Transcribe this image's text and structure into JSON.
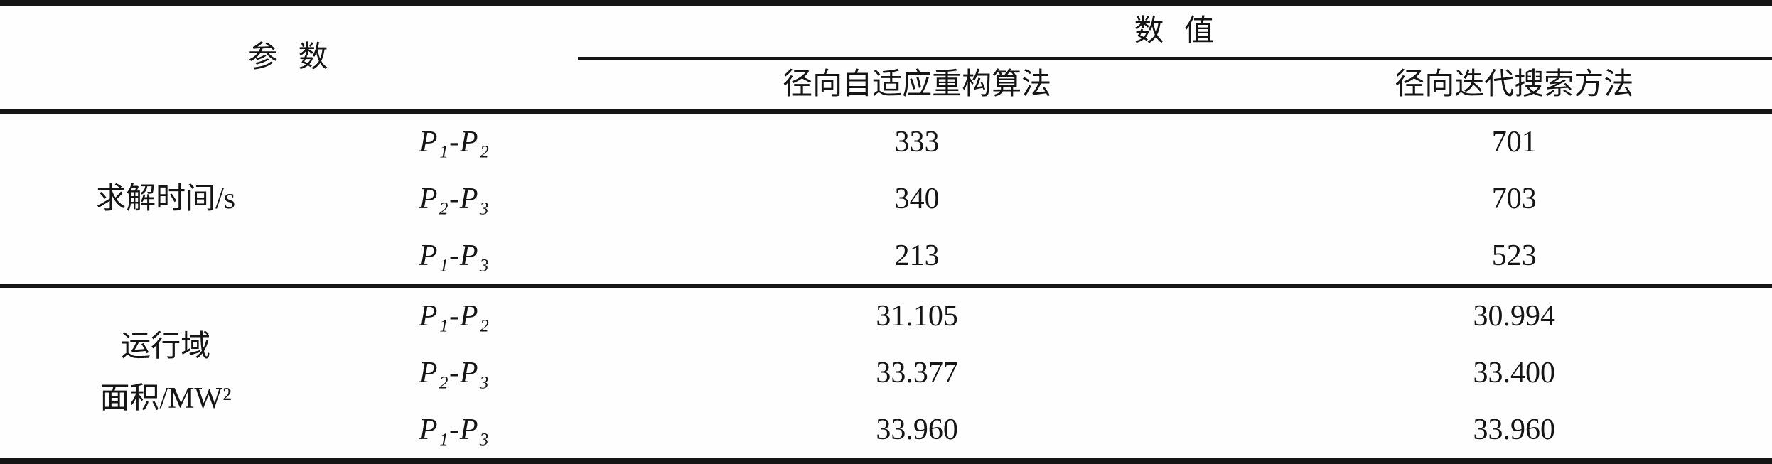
{
  "table": {
    "header": {
      "param_label": "参 数",
      "value_label": "数 值",
      "method_columns": [
        "径向自适应重构算法",
        "径向迭代搜索方法"
      ]
    },
    "sections": [
      {
        "group_label_lines": [
          "求解时间/s",
          ""
        ],
        "rows": [
          {
            "pair": "P₁-P₂",
            "values": [
              "333",
              "701"
            ]
          },
          {
            "pair": "P₂-P₃",
            "values": [
              "340",
              "703"
            ]
          },
          {
            "pair": "P₁-P₃",
            "values": [
              "213",
              "523"
            ]
          }
        ]
      },
      {
        "group_label_lines": [
          "运行域",
          "面积/MW²"
        ],
        "rows": [
          {
            "pair": "P₁-P₂",
            "values": [
              "31.105",
              "30.994"
            ]
          },
          {
            "pair": "P₂-P₃",
            "values": [
              "33.377",
              "33.400"
            ]
          },
          {
            "pair": "P₁-P₃",
            "values": [
              "33.960",
              "33.960"
            ]
          }
        ]
      }
    ]
  },
  "chart_data": {
    "type": "table",
    "title": "",
    "columns": [
      "参数(组)",
      "参数(对)",
      "径向自适应重构算法",
      "径向迭代搜索方法"
    ],
    "rows": [
      [
        "求解时间/s",
        "P1-P2",
        333,
        701
      ],
      [
        "求解时间/s",
        "P2-P3",
        340,
        703
      ],
      [
        "求解时间/s",
        "P1-P3",
        213,
        523
      ],
      [
        "运行域面积/MW²",
        "P1-P2",
        31.105,
        30.994
      ],
      [
        "运行域面积/MW²",
        "P2-P3",
        33.377,
        33.4
      ],
      [
        "运行域面积/MW²",
        "P1-P3",
        33.96,
        33.96
      ]
    ]
  }
}
